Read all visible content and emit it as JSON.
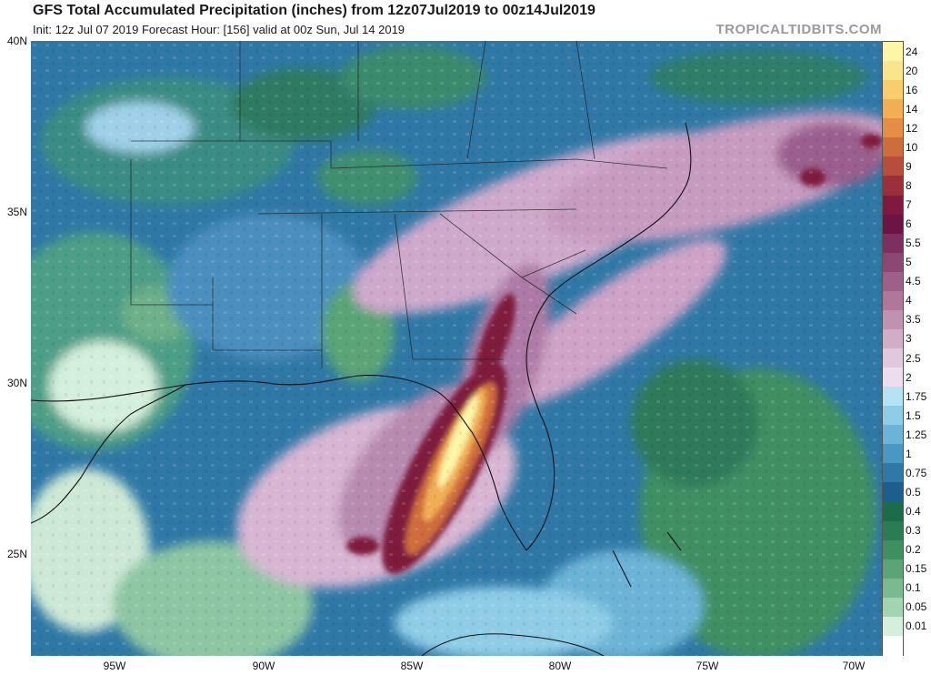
{
  "header": {
    "title": "GFS Total Accumulated Precipitation (inches) from 12z07Jul2019 to 00z14Jul2019",
    "subtitle": "Init: 12z Jul 07 2019   Forecast Hour: [156]   valid at 00z Sun, Jul 14 2019",
    "brand": "TROPICALTIDBITS.COM"
  },
  "axes": {
    "latitude_labels": [
      "40N",
      "35N",
      "30N",
      "25N"
    ],
    "longitude_labels": [
      "95W",
      "90W",
      "85W",
      "80W",
      "75W",
      "70W"
    ]
  },
  "colorbar": {
    "levels": [
      {
        "label": "24",
        "color": "#fdf6a8"
      },
      {
        "label": "20",
        "color": "#fbe58c"
      },
      {
        "label": "16",
        "color": "#f8cd6e"
      },
      {
        "label": "14",
        "color": "#f1ae55"
      },
      {
        "label": "12",
        "color": "#e38d45"
      },
      {
        "label": "10",
        "color": "#cf6c3c"
      },
      {
        "label": "9",
        "color": "#b94d3d"
      },
      {
        "label": "8",
        "color": "#9c2f3c"
      },
      {
        "label": "7",
        "color": "#7f1a3e"
      },
      {
        "label": "6",
        "color": "#6b1445"
      },
      {
        "label": "5.5",
        "color": "#7d2f62"
      },
      {
        "label": "5",
        "color": "#8d4775"
      },
      {
        "label": "4.5",
        "color": "#9e5f88"
      },
      {
        "label": "4",
        "color": "#af789b"
      },
      {
        "label": "3.5",
        "color": "#c092b1"
      },
      {
        "label": "3",
        "color": "#d1adc7"
      },
      {
        "label": "2.5",
        "color": "#e1c9dd"
      },
      {
        "label": "2",
        "color": "#eedcef"
      },
      {
        "label": "1.75",
        "color": "#b5e3f6"
      },
      {
        "label": "1.5",
        "color": "#8fcde7"
      },
      {
        "label": "1.25",
        "color": "#6cb4d7"
      },
      {
        "label": "1",
        "color": "#4a97c2"
      },
      {
        "label": "0.75",
        "color": "#2e79a8"
      },
      {
        "label": "0.5",
        "color": "#1d5f8c"
      },
      {
        "label": "0.4",
        "color": "#1c6b4a"
      },
      {
        "label": "0.3",
        "color": "#2b7c55"
      },
      {
        "label": "0.2",
        "color": "#3f8f63"
      },
      {
        "label": "0.15",
        "color": "#5aa477"
      },
      {
        "label": "0.1",
        "color": "#7bba91"
      },
      {
        "label": "0.05",
        "color": "#a3d4b2"
      },
      {
        "label": "0.01",
        "color": "#d4efdc"
      },
      {
        "label": "",
        "color": "#ffffff"
      }
    ]
  }
}
